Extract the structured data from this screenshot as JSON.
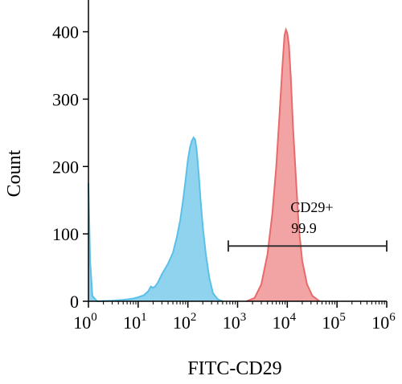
{
  "chart_data": {
    "type": "area",
    "xlabel": "FITC-CD29",
    "ylabel": "Count",
    "x_scale": "log10",
    "xlim": [
      1,
      1000000
    ],
    "ylim": [
      0,
      440
    ],
    "x_ticks": [
      {
        "base": "10",
        "exp": "0"
      },
      {
        "base": "10",
        "exp": "1"
      },
      {
        "base": "10",
        "exp": "2"
      },
      {
        "base": "10",
        "exp": "3"
      },
      {
        "base": "10",
        "exp": "4"
      },
      {
        "base": "10",
        "exp": "5"
      },
      {
        "base": "10",
        "exp": "6"
      }
    ],
    "y_ticks": [
      "0",
      "100",
      "200",
      "300",
      "400"
    ],
    "series": [
      {
        "color": "#5bc0e8",
        "fill": "#8fd3ef",
        "points": [
          [
            1,
            175
          ],
          [
            1.08,
            60
          ],
          [
            1.2,
            8
          ],
          [
            1.5,
            0
          ],
          [
            3,
            1
          ],
          [
            5,
            2
          ],
          [
            8,
            4
          ],
          [
            10,
            6
          ],
          [
            13,
            9
          ],
          [
            16,
            15
          ],
          [
            18,
            22
          ],
          [
            20,
            20
          ],
          [
            22,
            22
          ],
          [
            25,
            28
          ],
          [
            30,
            40
          ],
          [
            40,
            56
          ],
          [
            50,
            72
          ],
          [
            60,
            95
          ],
          [
            70,
            120
          ],
          [
            80,
            150
          ],
          [
            90,
            180
          ],
          [
            100,
            210
          ],
          [
            110,
            228
          ],
          [
            120,
            238
          ],
          [
            130,
            243
          ],
          [
            140,
            240
          ],
          [
            150,
            225
          ],
          [
            165,
            190
          ],
          [
            180,
            150
          ],
          [
            200,
            110
          ],
          [
            230,
            70
          ],
          [
            270,
            35
          ],
          [
            320,
            12
          ],
          [
            400,
            3
          ],
          [
            500,
            0
          ]
        ]
      },
      {
        "color": "#e86a6a",
        "fill": "#f2a3a3",
        "points": [
          [
            1500,
            0
          ],
          [
            2200,
            5
          ],
          [
            3000,
            25
          ],
          [
            4000,
            70
          ],
          [
            5000,
            130
          ],
          [
            6000,
            200
          ],
          [
            7000,
            280
          ],
          [
            8000,
            350
          ],
          [
            8800,
            395
          ],
          [
            9400,
            403
          ],
          [
            10000,
            398
          ],
          [
            10800,
            380
          ],
          [
            11800,
            330
          ],
          [
            13000,
            260
          ],
          [
            15000,
            180
          ],
          [
            17000,
            110
          ],
          [
            20000,
            60
          ],
          [
            25000,
            25
          ],
          [
            32000,
            8
          ],
          [
            45000,
            0
          ]
        ]
      }
    ],
    "gate": {
      "label": "CD29+",
      "value": "99.9",
      "x_start": 650,
      "x_end": 1000000,
      "y": 82
    }
  }
}
